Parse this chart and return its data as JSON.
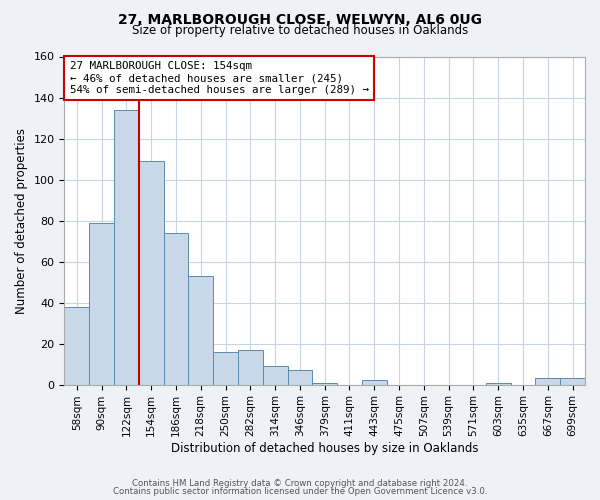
{
  "title1": "27, MARLBOROUGH CLOSE, WELWYN, AL6 0UG",
  "title2": "Size of property relative to detached houses in Oaklands",
  "xlabel": "Distribution of detached houses by size in Oaklands",
  "ylabel": "Number of detached properties",
  "bar_labels": [
    "58sqm",
    "90sqm",
    "122sqm",
    "154sqm",
    "186sqm",
    "218sqm",
    "250sqm",
    "282sqm",
    "314sqm",
    "346sqm",
    "379sqm",
    "411sqm",
    "443sqm",
    "475sqm",
    "507sqm",
    "539sqm",
    "571sqm",
    "603sqm",
    "635sqm",
    "667sqm",
    "699sqm"
  ],
  "bar_heights": [
    38,
    79,
    134,
    109,
    74,
    53,
    16,
    17,
    9,
    7,
    1,
    0,
    2,
    0,
    0,
    0,
    0,
    1,
    0,
    3,
    3
  ],
  "bar_color": "#c8d8e8",
  "bar_edge_color": "#5a8ab0",
  "vline_color": "#cc0000",
  "annotation_title": "27 MARLBOROUGH CLOSE: 154sqm",
  "annotation_line1": "← 46% of detached houses are smaller (245)",
  "annotation_line2": "54% of semi-detached houses are larger (289) →",
  "annotation_box_edge": "#cc0000",
  "annotation_box_facecolor": "#ffffff",
  "ylim": [
    0,
    160
  ],
  "yticks": [
    0,
    20,
    40,
    60,
    80,
    100,
    120,
    140,
    160
  ],
  "footer1": "Contains HM Land Registry data © Crown copyright and database right 2024.",
  "footer2": "Contains public sector information licensed under the Open Government Licence v3.0.",
  "bg_color": "#eef2f6",
  "plot_bg_color": "#ffffff",
  "grid_color": "#c8d4e0"
}
